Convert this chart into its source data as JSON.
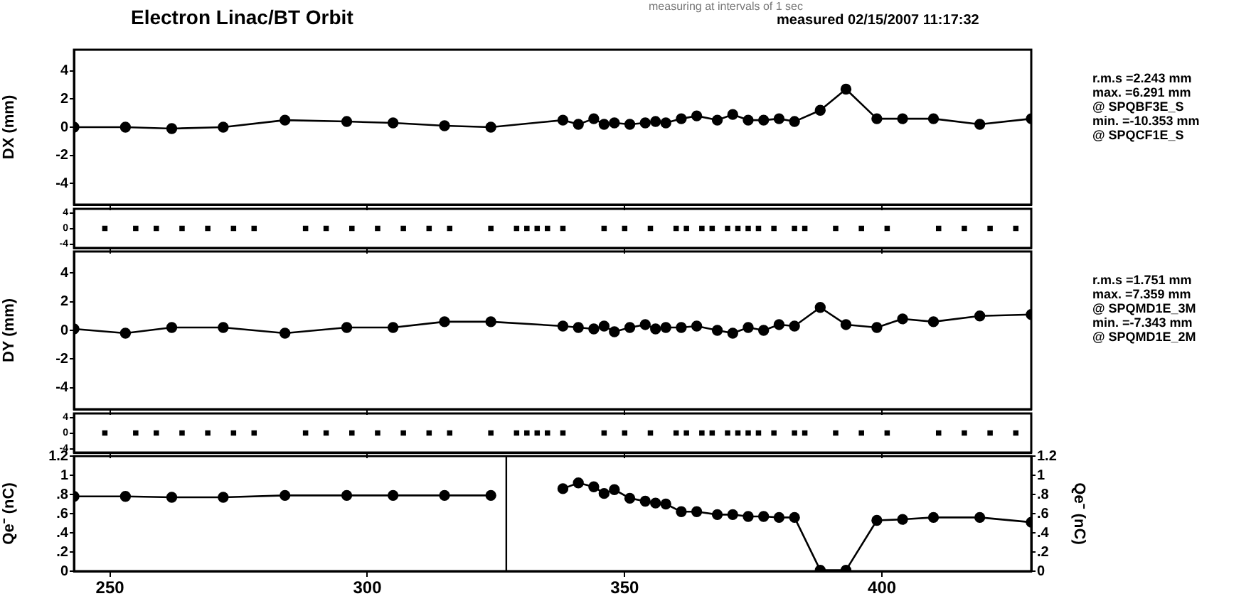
{
  "chart_data": [
    {
      "type": "line",
      "title": "Electron Linac/BT  Orbit",
      "subtitle": "measured   02/15/2007 11:17:32",
      "ylabel": "DX (mm)",
      "xlim": [
        243,
        429
      ],
      "xticks": [
        250,
        300,
        350,
        400
      ],
      "ylim": [
        -5.5,
        5.5
      ],
      "yticks": [
        -4,
        -2,
        0,
        2,
        4
      ],
      "tick_labels": "y",
      "grid": false,
      "legend": false,
      "marker": "circle",
      "annotations": [
        "measuring at intervals of 1 sec",
        "r.m.s =2.243 mm",
        "max. =6.291 mm",
        "@ SPQBF3E_S",
        "min. =-10.353 mm",
        "@ SPQCF1E_S"
      ],
      "x": [
        243,
        253,
        262,
        272,
        284,
        296,
        305,
        315,
        324,
        338,
        341,
        344,
        346,
        348,
        351,
        354,
        356,
        358,
        361,
        364,
        368,
        371,
        374,
        377,
        380,
        383,
        388,
        393,
        399,
        404,
        410,
        419,
        429
      ],
      "series": [
        {
          "color": "#000000",
          "values": [
            0,
            0,
            -0.1,
            0,
            0.5,
            0.4,
            0.3,
            0.1,
            0,
            0.5,
            0.2,
            0.6,
            0.2,
            0.3,
            0.2,
            0.3,
            0.4,
            0.3,
            0.6,
            0.8,
            0.5,
            0.9,
            0.5,
            0.5,
            0.6,
            0.4,
            1.2,
            2.7,
            0.6,
            0.6,
            0.6,
            0.2,
            0.6
          ]
        }
      ]
    },
    {
      "type": "scatter",
      "xlim": [
        243,
        429
      ],
      "xticks": [
        250,
        300,
        350,
        400
      ],
      "ylim": [
        -5,
        5
      ],
      "yticks": [
        -4,
        0,
        4
      ],
      "tick_labels": "y",
      "grid": false,
      "legend": false,
      "marker": "square",
      "x": [
        249,
        255,
        259,
        264,
        269,
        274,
        278,
        288,
        292,
        297,
        302,
        307,
        312,
        316,
        324,
        329,
        331,
        333,
        335,
        338,
        346,
        350,
        355,
        360,
        362,
        365,
        367,
        370,
        372,
        374,
        376,
        379,
        383,
        385,
        391,
        396,
        401,
        411,
        416,
        421,
        426
      ],
      "series": [
        {
          "color": "#000000",
          "values": [
            0,
            0,
            0,
            0,
            0,
            0,
            0,
            0,
            0,
            0,
            0,
            0,
            0,
            0,
            0,
            0,
            0,
            0,
            0,
            0,
            0,
            0,
            0,
            0,
            0,
            0,
            0,
            0,
            0,
            0,
            0,
            0,
            0,
            0,
            0,
            0,
            0,
            0,
            0,
            0,
            0
          ]
        }
      ]
    },
    {
      "type": "line",
      "ylabel": "DY (mm)",
      "xlim": [
        243,
        429
      ],
      "xticks": [
        250,
        300,
        350,
        400
      ],
      "ylim": [
        -5.5,
        5.5
      ],
      "yticks": [
        -4,
        -2,
        0,
        2,
        4
      ],
      "tick_labels": "y",
      "grid": false,
      "legend": false,
      "marker": "circle",
      "annotations": [
        "r.m.s =1.751 mm",
        "max. =7.359 mm",
        "@ SPQMD1E_3M",
        "min. =-7.343 mm",
        "@ SPQMD1E_2M"
      ],
      "x": [
        243,
        253,
        262,
        272,
        284,
        296,
        305,
        315,
        324,
        338,
        341,
        344,
        346,
        348,
        351,
        354,
        356,
        358,
        361,
        364,
        368,
        371,
        374,
        377,
        380,
        383,
        388,
        393,
        399,
        404,
        410,
        419,
        429
      ],
      "series": [
        {
          "color": "#000000",
          "values": [
            0.1,
            -0.2,
            0.2,
            0.2,
            -0.2,
            0.2,
            0.2,
            0.6,
            0.6,
            0.3,
            0.2,
            0.1,
            0.3,
            -0.1,
            0.2,
            0.4,
            0.1,
            0.2,
            0.2,
            0.3,
            0,
            -0.2,
            0.2,
            0,
            0.4,
            0.3,
            1.6,
            0.4,
            0.2,
            0.8,
            0.6,
            1.0,
            1.1
          ]
        }
      ]
    },
    {
      "type": "scatter",
      "xlim": [
        243,
        429
      ],
      "xticks": [
        250,
        300,
        350,
        400
      ],
      "ylim": [
        -5,
        5
      ],
      "yticks": [
        -4,
        0,
        4
      ],
      "tick_labels": "y",
      "grid": false,
      "legend": false,
      "marker": "square",
      "x": [
        249,
        255,
        259,
        264,
        269,
        274,
        278,
        288,
        292,
        297,
        302,
        307,
        312,
        316,
        324,
        329,
        331,
        333,
        335,
        338,
        346,
        350,
        355,
        360,
        362,
        365,
        367,
        370,
        372,
        374,
        376,
        379,
        383,
        385,
        391,
        396,
        401,
        411,
        416,
        421,
        426
      ],
      "series": [
        {
          "color": "#000000",
          "values": [
            0,
            0,
            0,
            0,
            0,
            0,
            0,
            0,
            0,
            0,
            0,
            0,
            0,
            0,
            0,
            0,
            0,
            0,
            0,
            0,
            0,
            0,
            0,
            0,
            0,
            0,
            0,
            0,
            0,
            0,
            0,
            0,
            0,
            0,
            0,
            0,
            0,
            0,
            0,
            0,
            0
          ]
        }
      ]
    },
    {
      "type": "line",
      "ylabel": "Qe⁻ (nC)",
      "y2label": "Qe⁻ (nC)",
      "xlim": [
        243,
        429
      ],
      "xticks": [
        250,
        300,
        350,
        400
      ],
      "ylim": [
        0,
        1.2
      ],
      "yticks": [
        0,
        {
          "value": 0.2,
          "label": ".2"
        },
        {
          "value": 0.4,
          "label": ".4"
        },
        {
          "value": 0.6,
          "label": ".6"
        },
        {
          "value": 0.8,
          "label": ".8"
        },
        1,
        1.2
      ],
      "y2lim": [
        0,
        1.2
      ],
      "y2ticks": [
        0,
        {
          "value": 0.2,
          "label": ".2"
        },
        {
          "value": 0.4,
          "label": ".4"
        },
        {
          "value": 0.6,
          "label": ".6"
        },
        {
          "value": 0.8,
          "label": ".8"
        },
        1,
        1.2
      ],
      "grid": false,
      "legend": false,
      "marker": "circle",
      "ref_lines": [
        {
          "axis": "x",
          "value": 327,
          "color": "#000000"
        }
      ],
      "x": [
        243,
        253,
        262,
        272,
        284,
        296,
        305,
        315,
        324,
        327,
        338,
        341,
        344,
        346,
        348,
        351,
        354,
        356,
        358,
        361,
        364,
        368,
        371,
        374,
        377,
        380,
        383,
        388,
        393,
        399,
        404,
        410,
        419,
        429
      ],
      "series": [
        {
          "color": "#000000",
          "values": [
            0.78,
            0.78,
            0.77,
            0.77,
            0.79,
            0.79,
            0.79,
            0.79,
            0.79,
            null,
            0.86,
            0.92,
            0.88,
            0.81,
            0.85,
            0.76,
            0.73,
            0.71,
            0.7,
            0.62,
            0.62,
            0.59,
            0.59,
            0.57,
            0.57,
            0.56,
            0.56,
            0.01,
            0.01,
            0.53,
            0.54,
            0.56,
            0.56,
            0.51
          ]
        }
      ]
    }
  ]
}
